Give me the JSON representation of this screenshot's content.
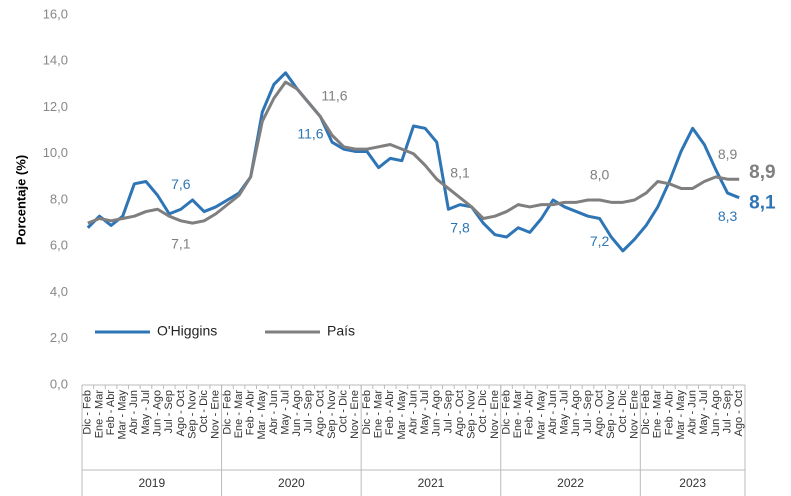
{
  "chart_data": {
    "type": "line",
    "y_label": "Porcentaje (%)",
    "groups": [
      {
        "name": "2019",
        "categories": [
          "Dic - Feb",
          "Ene - Mar",
          "Feb - Abr",
          "Mar - May",
          "Abr - Jun",
          "May - Jul",
          "Jun - Ago",
          "Jul - Sep",
          "Ago - Oct",
          "Sep - Nov",
          "Oct - Dic",
          "Nov - Ene"
        ]
      },
      {
        "name": "2020",
        "categories": [
          "Dic - Feb",
          "Ene - Mar",
          "Feb - Abr",
          "Mar - May",
          "Abr - Jun",
          "May - Jul",
          "Jun - Ago",
          "Jul - Sep",
          "Ago - Oct",
          "Sep - Nov",
          "Oct - Dic",
          "Nov - Ene"
        ]
      },
      {
        "name": "2021",
        "categories": [
          "Dic - Feb",
          "Ene - Mar",
          "Feb - Abr",
          "Mar - May",
          "Abr - Jun",
          "May - Jul",
          "Jun - Ago",
          "Jul - Sep",
          "Ago - Oct",
          "Sep - Nov",
          "Oct - Dic",
          "Nov - Ene"
        ]
      },
      {
        "name": "2022",
        "categories": [
          "Dic - Feb",
          "Ene - Mar",
          "Feb - Abr",
          "Mar - May",
          "Abr - Jun",
          "May - Jul",
          "Jun - Ago",
          "Jul - Sep",
          "Ago - Oct",
          "Sep - Nov",
          "Oct - Dic",
          "Nov - Ene"
        ]
      },
      {
        "name": "2023",
        "categories": [
          "Dic - Feb",
          "Ene - Mar",
          "Feb - Abr",
          "Mar - May",
          "Abr - Jun",
          "May - Jul",
          "Jun - Ago",
          "Jul - Sep",
          "Ago - Oct"
        ]
      }
    ],
    "series": [
      {
        "name": "O'Higgins",
        "color": "#2e75b6",
        "values": [
          6.8,
          7.3,
          6.9,
          7.3,
          8.7,
          8.8,
          8.2,
          7.4,
          7.6,
          8.0,
          7.5,
          7.7,
          8.0,
          8.3,
          9.0,
          11.8,
          13.0,
          13.5,
          12.8,
          12.2,
          11.6,
          10.5,
          10.2,
          10.1,
          10.1,
          9.4,
          9.8,
          9.7,
          11.2,
          11.1,
          10.5,
          7.6,
          7.8,
          7.7,
          7.0,
          6.5,
          6.4,
          6.8,
          6.6,
          7.2,
          8.0,
          7.7,
          7.5,
          7.3,
          7.2,
          6.4,
          5.8,
          6.3,
          6.9,
          7.7,
          8.8,
          10.1,
          11.1,
          10.4,
          9.3,
          8.3,
          8.1
        ],
        "value_labels": [
          null,
          null,
          null,
          null,
          null,
          null,
          null,
          null,
          "7,6",
          null,
          null,
          null,
          null,
          null,
          null,
          null,
          null,
          null,
          null,
          null,
          "11,6",
          null,
          null,
          null,
          null,
          null,
          null,
          null,
          null,
          null,
          null,
          null,
          "7,8",
          null,
          null,
          null,
          null,
          null,
          null,
          null,
          null,
          null,
          null,
          null,
          "7,2",
          null,
          null,
          null,
          null,
          null,
          null,
          null,
          null,
          null,
          null,
          "8,3",
          "8,1"
        ]
      },
      {
        "name": "País",
        "color": "#7f7f7f",
        "values": [
          7.0,
          7.2,
          7.1,
          7.2,
          7.3,
          7.5,
          7.6,
          7.3,
          7.1,
          7.0,
          7.1,
          7.4,
          7.8,
          8.2,
          9.0,
          11.4,
          12.4,
          13.1,
          12.8,
          12.2,
          11.6,
          10.8,
          10.3,
          10.2,
          10.2,
          10.3,
          10.4,
          10.2,
          10.0,
          9.5,
          8.9,
          8.5,
          8.1,
          7.7,
          7.2,
          7.3,
          7.5,
          7.8,
          7.7,
          7.8,
          7.8,
          7.9,
          7.9,
          8.0,
          8.0,
          7.9,
          7.9,
          8.0,
          8.3,
          8.8,
          8.7,
          8.5,
          8.5,
          8.8,
          9.0,
          8.9,
          8.9
        ],
        "value_labels": [
          null,
          null,
          null,
          null,
          null,
          null,
          null,
          null,
          "7,1",
          null,
          null,
          null,
          null,
          null,
          null,
          null,
          null,
          null,
          null,
          null,
          "11,6",
          null,
          null,
          null,
          null,
          null,
          null,
          null,
          null,
          null,
          null,
          null,
          "8,1",
          null,
          null,
          null,
          null,
          null,
          null,
          null,
          null,
          null,
          null,
          null,
          "8,0",
          null,
          null,
          null,
          null,
          null,
          null,
          null,
          null,
          null,
          null,
          "8,9",
          "8,9"
        ]
      }
    ],
    "ylim": [
      0,
      16
    ],
    "yticks": [
      {
        "value": 0,
        "label": "0,0"
      },
      {
        "value": 2,
        "label": "2,0"
      },
      {
        "value": 4,
        "label": "4,0"
      },
      {
        "value": 6,
        "label": "6,0"
      },
      {
        "value": 8,
        "label": "8,0"
      },
      {
        "value": 10,
        "label": "10,0"
      },
      {
        "value": 12,
        "label": "12,0"
      },
      {
        "value": 14,
        "label": "14,0"
      },
      {
        "value": 16,
        "label": "16,0"
      }
    ],
    "grid": false,
    "legend": "left"
  }
}
